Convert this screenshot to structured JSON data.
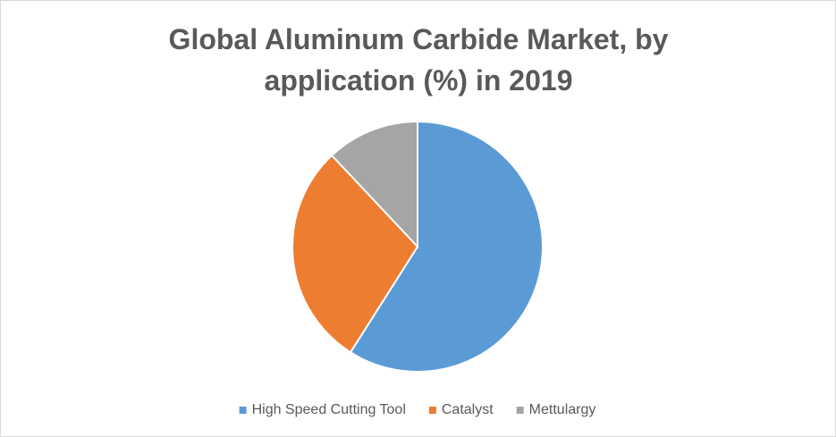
{
  "chart_data": {
    "type": "pie",
    "title": "Global Aluminum Carbide Market, by application (%) in 2019",
    "categories": [
      "High Speed Cutting Tool",
      "Catalyst",
      "Mettulargy"
    ],
    "values": [
      59,
      29,
      12
    ],
    "colors": [
      "#5b9bd5",
      "#ed7d31",
      "#a5a5a5"
    ],
    "legend": "bottom"
  }
}
